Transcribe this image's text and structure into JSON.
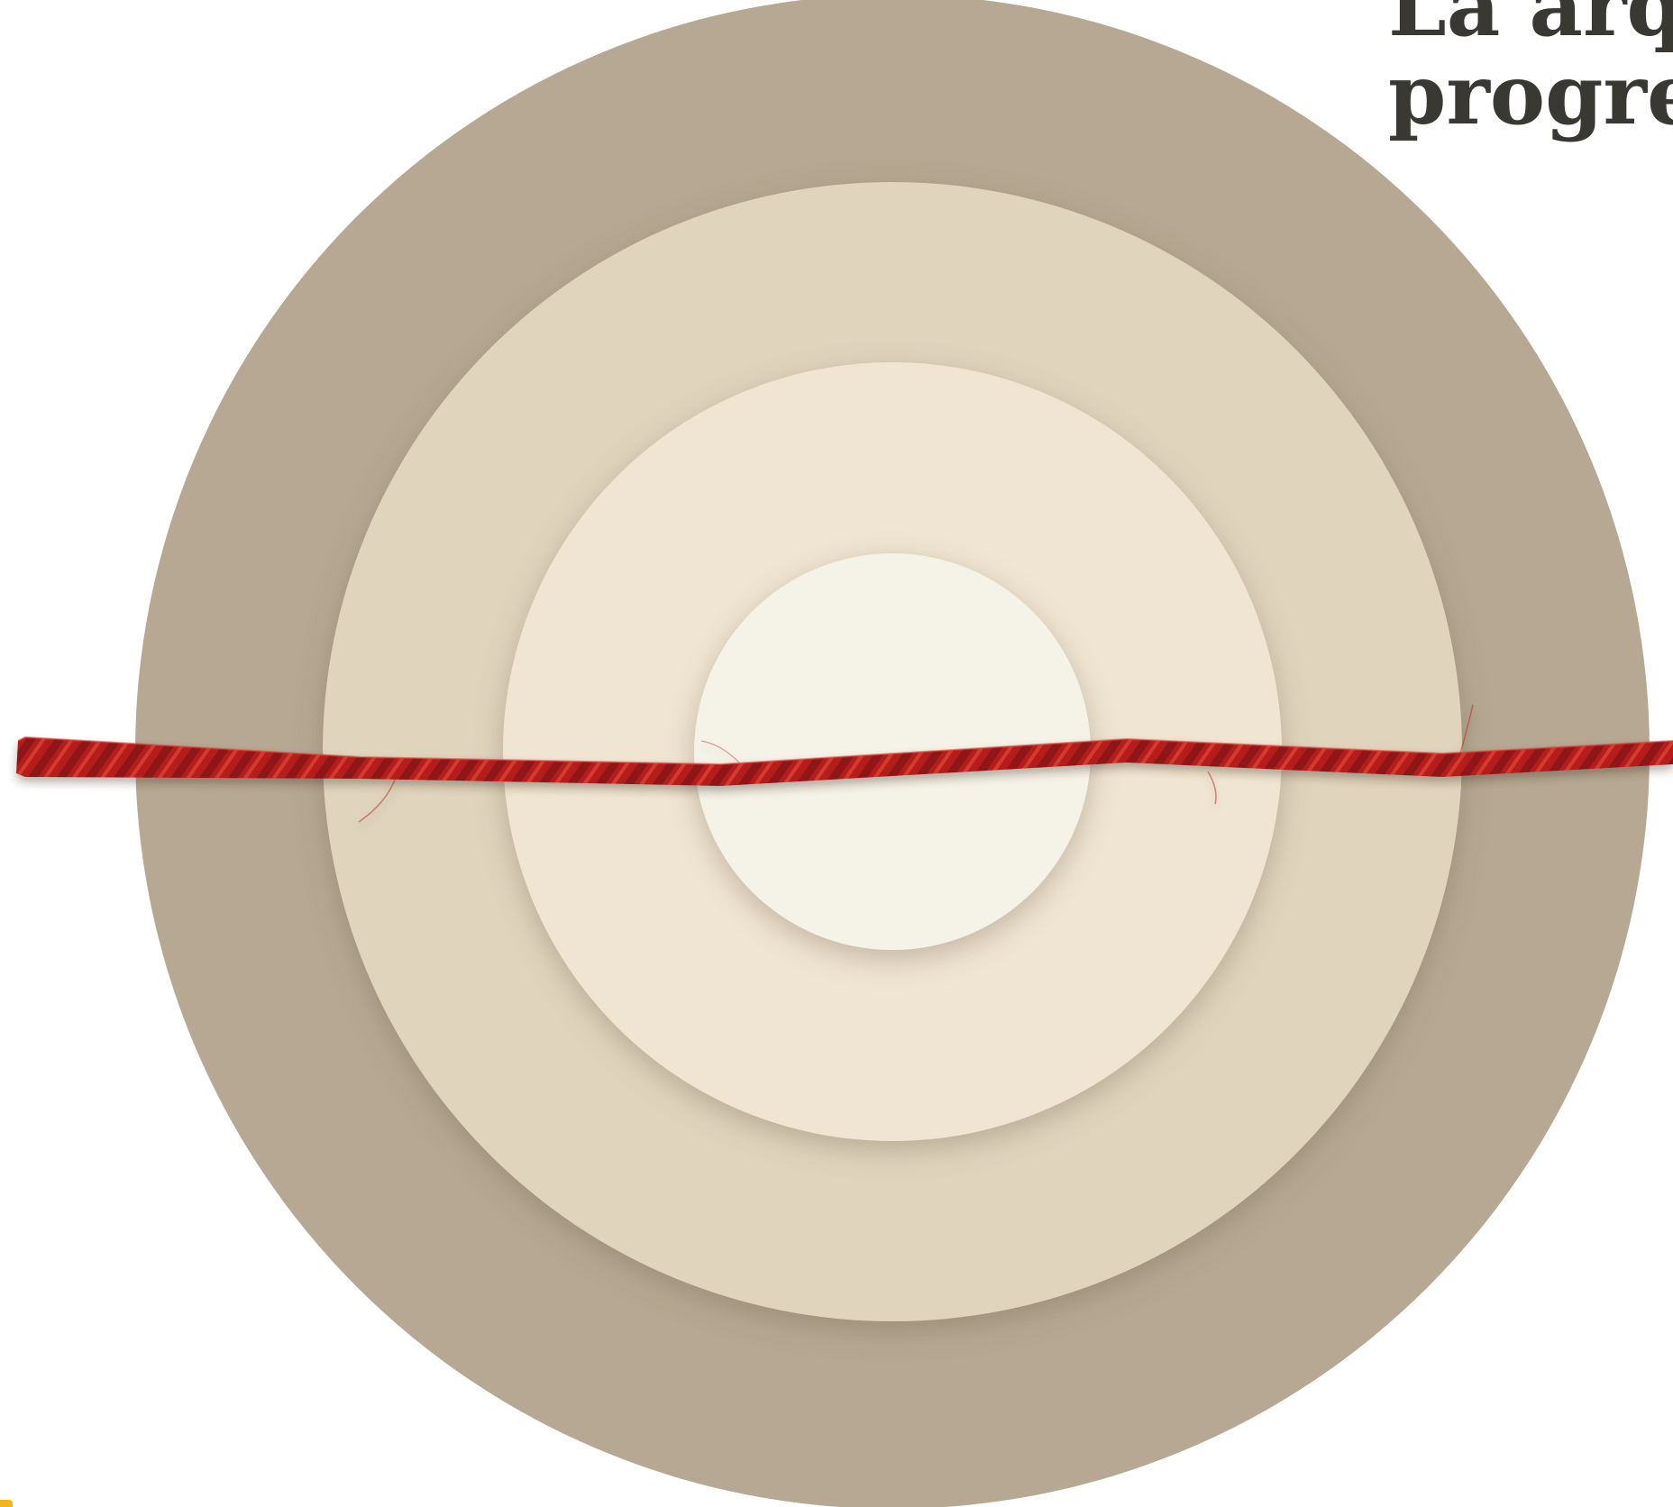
{
  "headline": {
    "line1": "La arqu",
    "line2": "progres"
  },
  "illustration": {
    "subject": "concentric-paper-circles-with-red-thread",
    "ring_colors": [
      "#b6a892",
      "#e0d4bd",
      "#f0e5d2",
      "#f5f2e7"
    ],
    "thread_color": "#b51f1a"
  },
  "accent": {
    "color": "#f2b51d"
  }
}
